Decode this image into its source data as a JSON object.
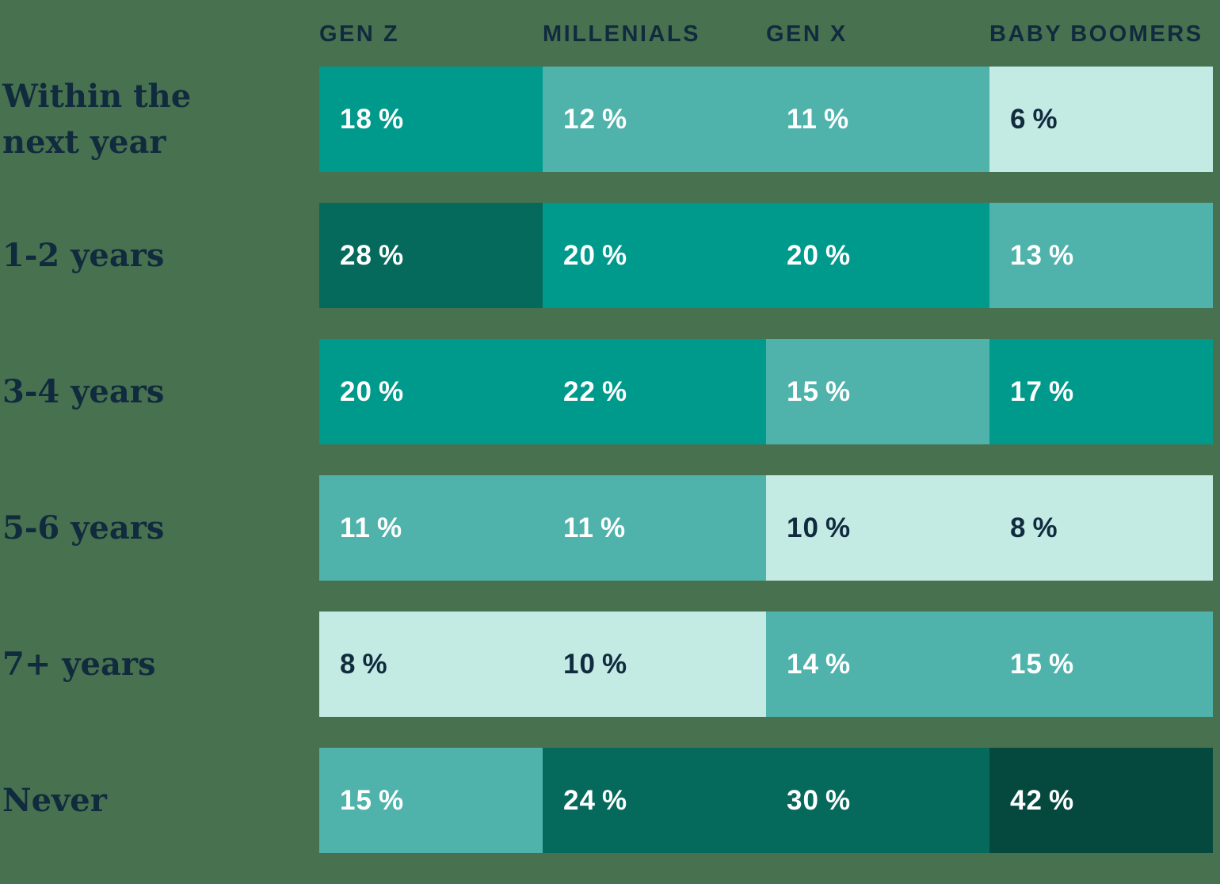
{
  "page": {
    "background_color": "#48714F"
  },
  "colors": {
    "navy_text": "#112B3E",
    "white_text": "#FFFFFF",
    "shades": {
      "darkest": "#05493E",
      "dark": "#05695C",
      "teal": "#009A8C",
      "medium": "#4FB3AC",
      "light": "#C4EAE4"
    }
  },
  "chart_data": {
    "type": "heatmap",
    "title": "",
    "unit": "%",
    "legend": "none",
    "grid": "off",
    "columns": [
      "GEN Z",
      "MILLENIALS",
      "GEN X",
      "BABY BOOMERS"
    ],
    "rows": [
      {
        "label": "Within the next year",
        "values": [
          18,
          12,
          11,
          6
        ],
        "shades": [
          "teal",
          "medium",
          "medium",
          "light"
        ]
      },
      {
        "label": "1-2 years",
        "values": [
          28,
          20,
          20,
          13
        ],
        "shades": [
          "dark",
          "teal",
          "teal",
          "medium"
        ]
      },
      {
        "label": "3-4 years",
        "values": [
          20,
          22,
          15,
          17
        ],
        "shades": [
          "teal",
          "teal",
          "medium",
          "teal"
        ]
      },
      {
        "label": "5-6 years",
        "values": [
          11,
          11,
          10,
          8
        ],
        "shades": [
          "medium",
          "medium",
          "light",
          "light"
        ]
      },
      {
        "label": "7+ years",
        "values": [
          8,
          10,
          14,
          15
        ],
        "shades": [
          "light",
          "light",
          "medium",
          "medium"
        ]
      },
      {
        "label": "Never",
        "values": [
          15,
          24,
          30,
          42
        ],
        "shades": [
          "medium",
          "dark",
          "dark",
          "darkest"
        ]
      }
    ]
  }
}
